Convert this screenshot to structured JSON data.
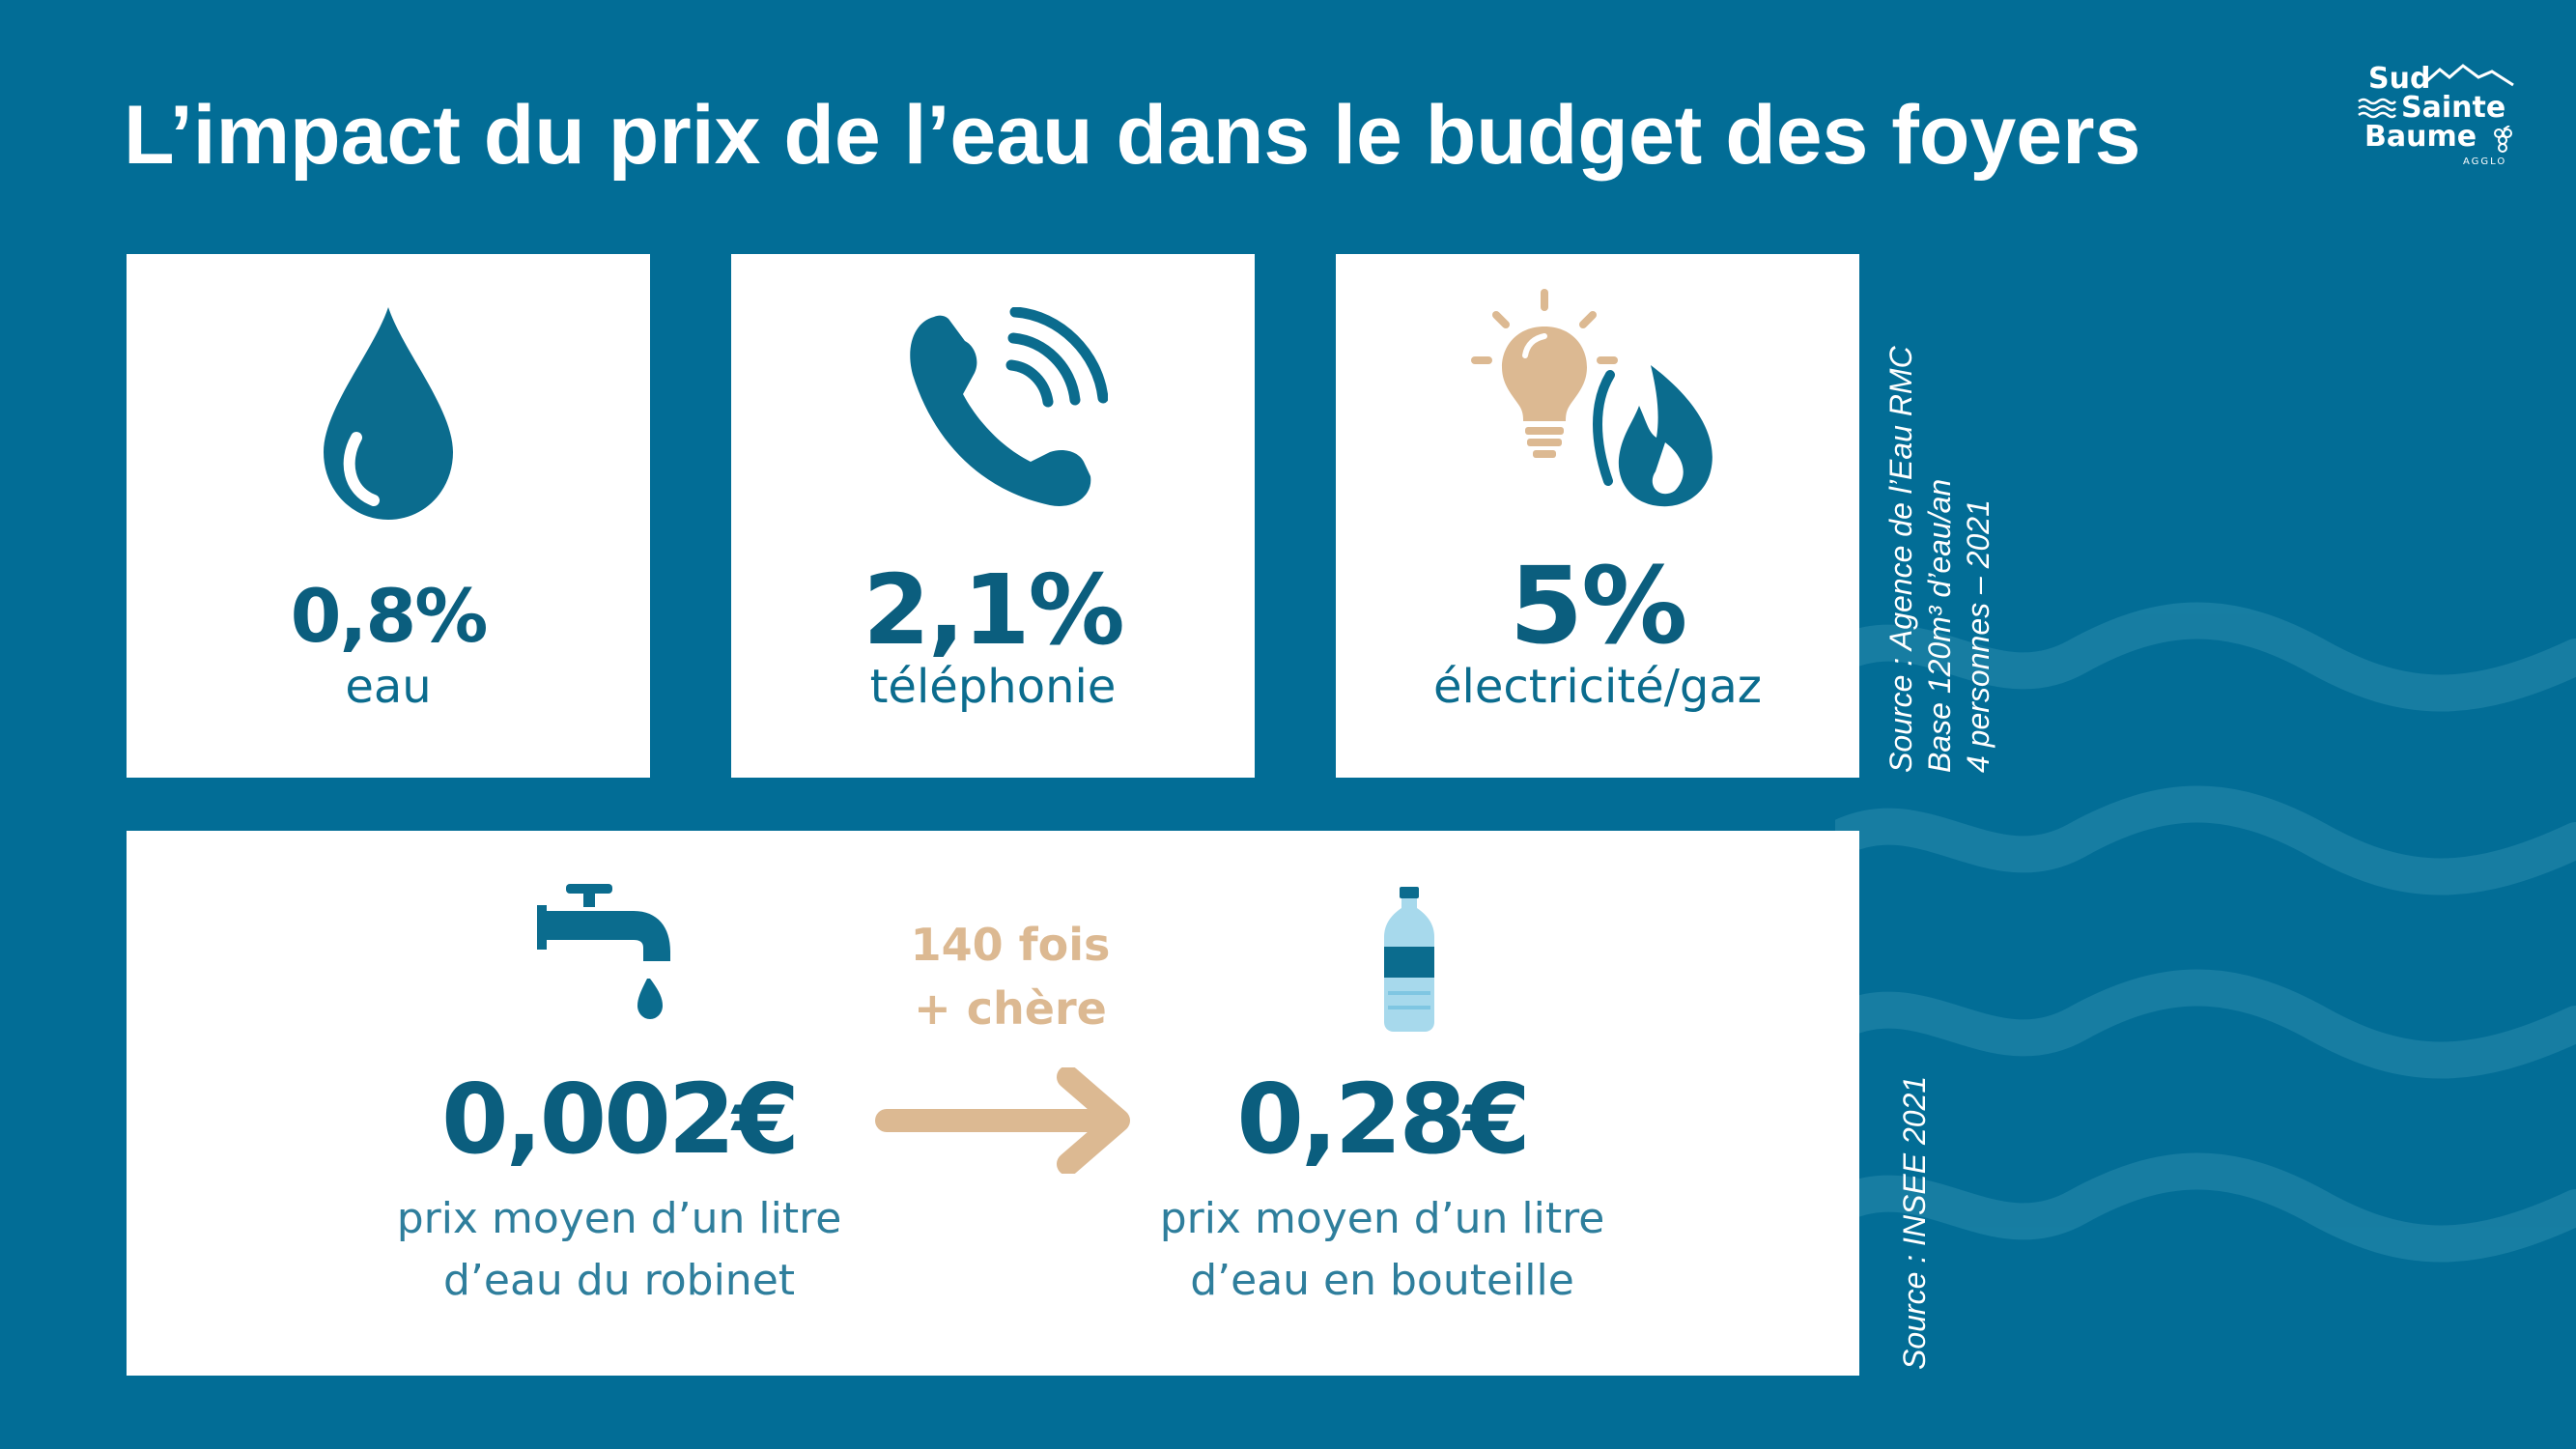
{
  "title": "L’impact du prix de l’eau dans le budget des foyers",
  "logo": {
    "line1": "Sud",
    "line2": "Sainte",
    "line3": "Baume",
    "sub": "AGGLO"
  },
  "stats": [
    {
      "value": "0,8%",
      "label": "eau",
      "icon": "water-drop-icon"
    },
    {
      "value": "2,1%",
      "label": "téléphonie",
      "icon": "phone-icon"
    },
    {
      "value": "5%",
      "label": "électricité/gaz",
      "icon": "bulb-flame-icon"
    }
  ],
  "comparison": {
    "tap": {
      "price": "0,002€",
      "desc_line1": "prix moyen d’un litre",
      "desc_line2": "d’eau du robinet",
      "icon": "tap-icon"
    },
    "ratio": {
      "line1": "140 fois",
      "line2": "+ chère"
    },
    "bottle": {
      "price": "0,28€",
      "desc_line1": "prix moyen d’un litre",
      "desc_line2": "d’eau en bouteille",
      "icon": "bottle-icon"
    }
  },
  "sources": {
    "top": [
      "Source : Agence de l’Eau RMC",
      "Base 120m³ d’eau/an",
      "4 personnes – 2021"
    ],
    "bottom": "Source : INSEE 2021"
  },
  "colors": {
    "background": "#026d96",
    "navy": "#0b5e7e",
    "accent": "#dcb992",
    "card": "#ffffff"
  }
}
